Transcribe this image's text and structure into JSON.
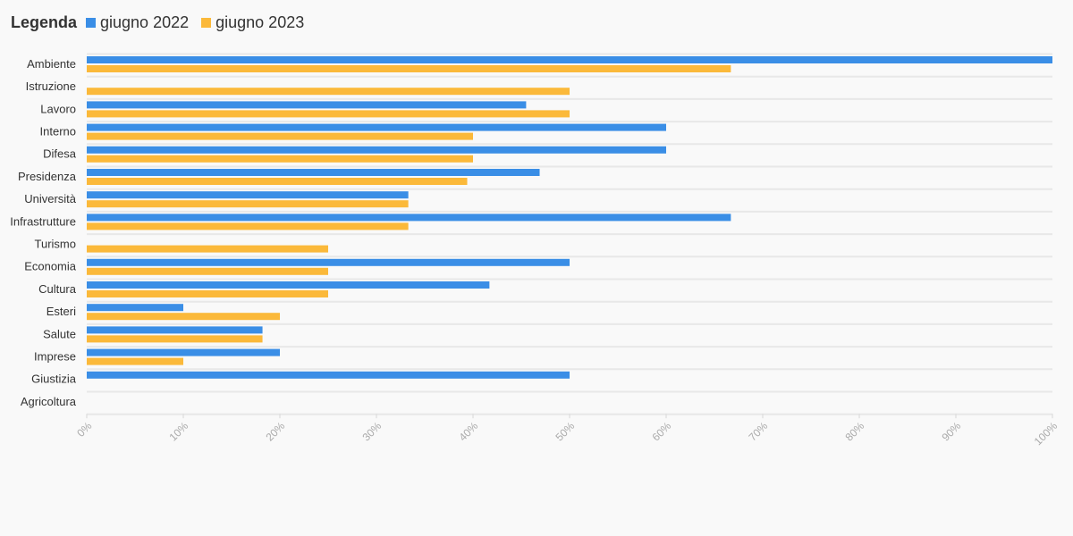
{
  "legend": {
    "title": "Legenda",
    "items": [
      {
        "label": "giugno 2022",
        "color": "#3a8ee6"
      },
      {
        "label": "giugno 2023",
        "color": "#fbb93a"
      }
    ]
  },
  "chart_data": {
    "type": "bar",
    "orientation": "horizontal",
    "categories": [
      "Ambiente",
      "Istruzione",
      "Lavoro",
      "Interno",
      "Difesa",
      "Presidenza",
      "Università",
      "Infrastrutture",
      "Turismo",
      "Economia",
      "Cultura",
      "Esteri",
      "Salute",
      "Imprese",
      "Giustizia",
      "Agricoltura"
    ],
    "series": [
      {
        "name": "giugno 2022",
        "color": "#3a8ee6",
        "values": [
          100,
          0,
          45.5,
          60,
          60,
          46.9,
          33.3,
          66.7,
          0,
          50,
          41.7,
          10,
          18.2,
          20,
          50,
          0
        ]
      },
      {
        "name": "giugno 2023",
        "color": "#fbb93a",
        "values": [
          66.7,
          50,
          50,
          40,
          40,
          39.4,
          33.3,
          33.3,
          25,
          25,
          25,
          20,
          18.2,
          10,
          0,
          0
        ]
      }
    ],
    "xlim": [
      0,
      100
    ],
    "xticks": [
      "0%",
      "10%",
      "20%",
      "30%",
      "40%",
      "50%",
      "60%",
      "70%",
      "80%",
      "90%",
      "100%"
    ],
    "grid": true,
    "legend_position": "top-left"
  }
}
